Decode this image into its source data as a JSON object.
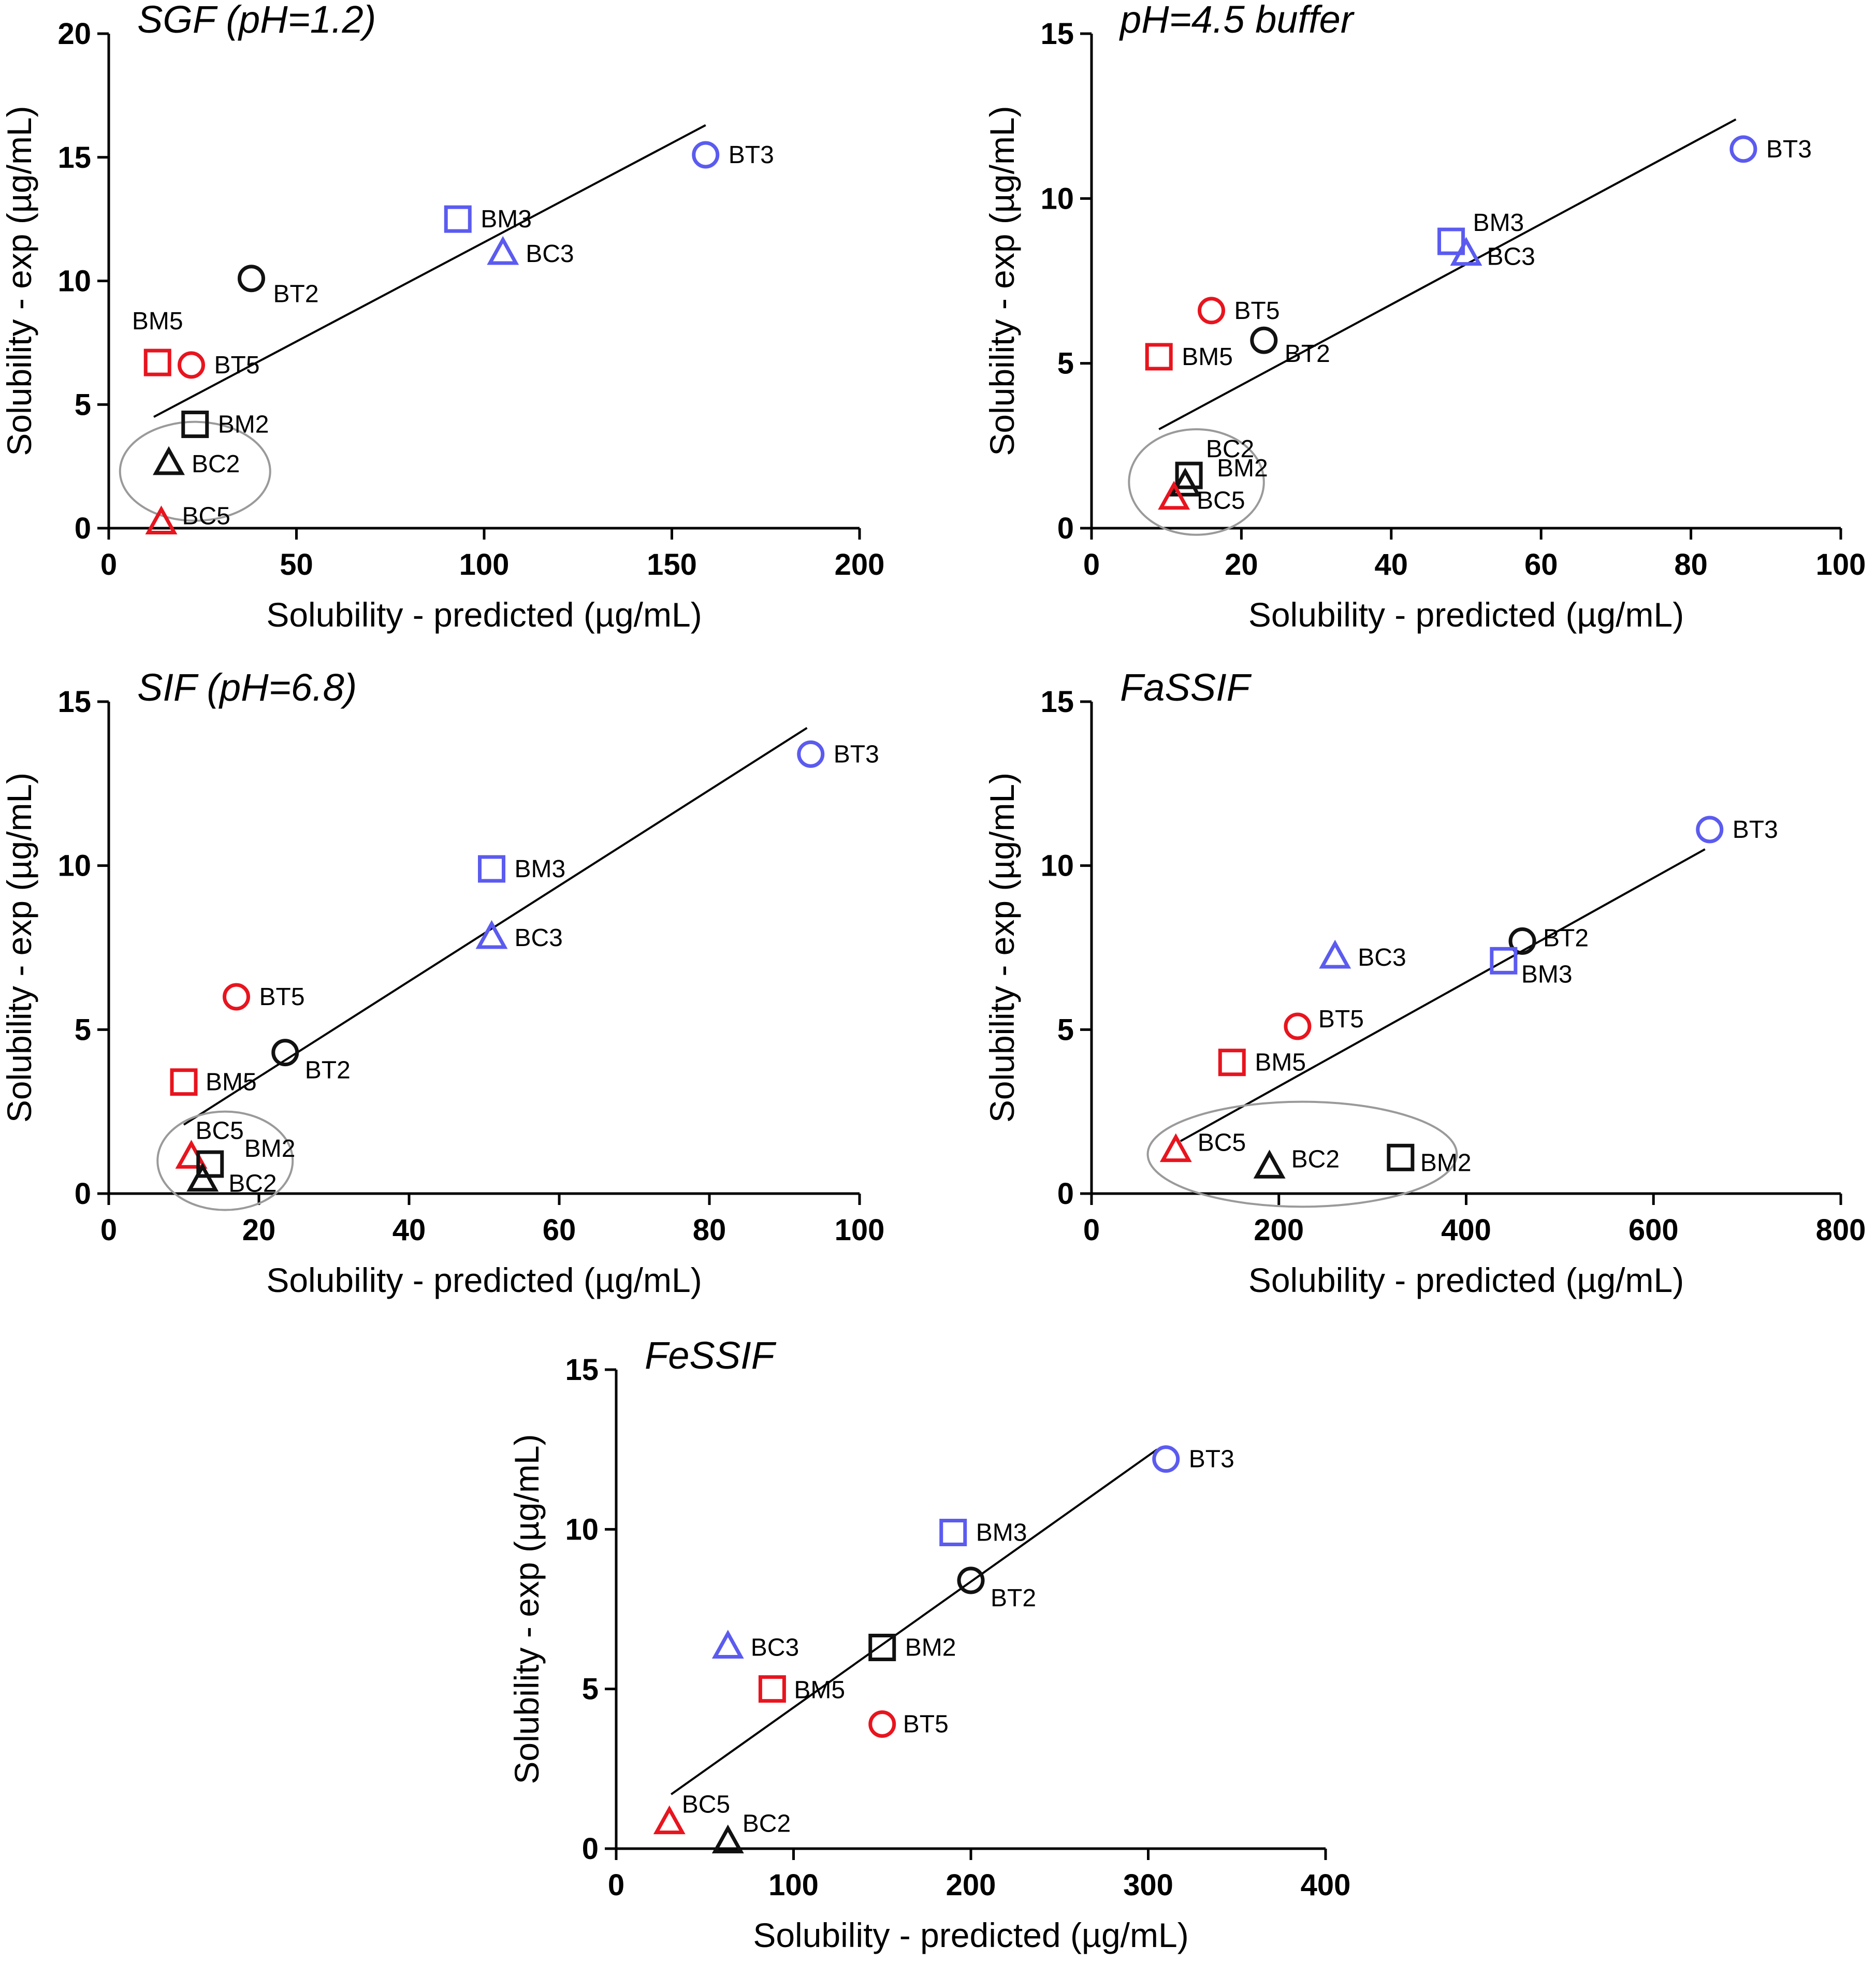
{
  "colors": {
    "blue": "#5B5BF0",
    "red": "#E8141E",
    "black": "#111111",
    "ellipse": "#9A9A9A",
    "fit": "#000000"
  },
  "chart_data": [
    {
      "type": "scatter",
      "title": "SGF (pH=1.2)",
      "xlabel": "Solubility - predicted (µg/mL)",
      "ylabel": "Solubility - exp (µg/mL)",
      "xlim": [
        0,
        200
      ],
      "ylim": [
        0,
        20
      ],
      "xticks": [
        "0",
        "50",
        "100",
        "150",
        "200"
      ],
      "yticks": [
        "0",
        "5",
        "10",
        "15",
        "20"
      ],
      "fit_line": [
        [
          12,
          4.5
        ],
        [
          159,
          16.3
        ]
      ],
      "highlight_ellipse": {
        "cx": 23,
        "cy": 2.3,
        "rx": 20,
        "ry": 2.0
      },
      "points": [
        {
          "label": "BT3",
          "x": 159,
          "y": 15.1,
          "shape": "circle",
          "color": "blue"
        },
        {
          "label": "BM3",
          "x": 93,
          "y": 12.5,
          "shape": "square",
          "color": "blue"
        },
        {
          "label": "BC3",
          "x": 105,
          "y": 11.1,
          "shape": "triangle",
          "color": "blue"
        },
        {
          "label": "BT2",
          "x": 38,
          "y": 10.1,
          "shape": "circle",
          "color": "black"
        },
        {
          "label": "BM5",
          "x": 13,
          "y": 6.7,
          "shape": "square",
          "color": "red"
        },
        {
          "label": "BT5",
          "x": 22,
          "y": 6.6,
          "shape": "circle",
          "color": "red"
        },
        {
          "label": "BM2",
          "x": 23,
          "y": 4.2,
          "shape": "square",
          "color": "black"
        },
        {
          "label": "BC2",
          "x": 16,
          "y": 2.6,
          "shape": "triangle",
          "color": "black"
        },
        {
          "label": "BC5",
          "x": 14,
          "y": 0.2,
          "shape": "triangle",
          "color": "red"
        }
      ]
    },
    {
      "type": "scatter",
      "title": "pH=4.5 buffer",
      "xlabel": "Solubility - predicted (µg/mL)",
      "ylabel": "Solubility - exp (µg/mL)",
      "xlim": [
        0,
        100
      ],
      "ylim": [
        0,
        15
      ],
      "xticks": [
        "0",
        "20",
        "40",
        "60",
        "80",
        "100"
      ],
      "yticks": [
        "0",
        "5",
        "10",
        "15"
      ],
      "fit_line": [
        [
          9,
          3.0
        ],
        [
          86,
          12.4
        ]
      ],
      "highlight_ellipse": {
        "cx": 14,
        "cy": 1.4,
        "rx": 9,
        "ry": 1.6
      },
      "points": [
        {
          "label": "BT3",
          "x": 87,
          "y": 11.5,
          "shape": "circle",
          "color": "blue"
        },
        {
          "label": "BM3",
          "x": 48,
          "y": 8.7,
          "shape": "square",
          "color": "blue"
        },
        {
          "label": "BC3",
          "x": 50,
          "y": 8.3,
          "shape": "triangle",
          "color": "blue"
        },
        {
          "label": "BT5",
          "x": 16,
          "y": 6.6,
          "shape": "circle",
          "color": "red"
        },
        {
          "label": "BT2",
          "x": 23,
          "y": 5.7,
          "shape": "circle",
          "color": "black"
        },
        {
          "label": "BM5",
          "x": 9,
          "y": 5.2,
          "shape": "square",
          "color": "red"
        },
        {
          "label": "BC2",
          "x": 12.5,
          "y": 1.3,
          "shape": "triangle",
          "color": "black"
        },
        {
          "label": "BM2",
          "x": 13,
          "y": 1.6,
          "shape": "square",
          "color": "black"
        },
        {
          "label": "BC5",
          "x": 11,
          "y": 0.9,
          "shape": "triangle",
          "color": "red"
        }
      ]
    },
    {
      "type": "scatter",
      "title": "SIF (pH=6.8)",
      "xlabel": "Solubility - predicted (µg/mL)",
      "ylabel": "Solubility - exp (µg/mL)",
      "xlim": [
        0,
        100
      ],
      "ylim": [
        0,
        15
      ],
      "xticks": [
        "0",
        "20",
        "40",
        "60",
        "80",
        "100"
      ],
      "yticks": [
        "0",
        "5",
        "10",
        "15"
      ],
      "fit_line": [
        [
          10,
          2.1
        ],
        [
          93,
          14.2
        ]
      ],
      "highlight_ellipse": {
        "cx": 15.5,
        "cy": 1.0,
        "rx": 9,
        "ry": 1.5
      },
      "points": [
        {
          "label": "BT3",
          "x": 93.5,
          "y": 13.4,
          "shape": "circle",
          "color": "blue"
        },
        {
          "label": "BM3",
          "x": 51,
          "y": 9.9,
          "shape": "square",
          "color": "blue"
        },
        {
          "label": "BC3",
          "x": 51,
          "y": 7.8,
          "shape": "triangle",
          "color": "blue"
        },
        {
          "label": "BT5",
          "x": 17,
          "y": 6.0,
          "shape": "circle",
          "color": "red"
        },
        {
          "label": "BT2",
          "x": 23.5,
          "y": 4.3,
          "shape": "circle",
          "color": "black"
        },
        {
          "label": "BM5",
          "x": 10,
          "y": 3.4,
          "shape": "square",
          "color": "red"
        },
        {
          "label": "BC5",
          "x": 11,
          "y": 1.1,
          "shape": "triangle",
          "color": "red"
        },
        {
          "label": "BM2",
          "x": 13.5,
          "y": 0.9,
          "shape": "square",
          "color": "black"
        },
        {
          "label": "BC2",
          "x": 12.5,
          "y": 0.4,
          "shape": "triangle",
          "color": "black"
        }
      ]
    },
    {
      "type": "scatter",
      "title": "FaSSIF",
      "xlabel": "Solubility - predicted (µg/mL)",
      "ylabel": "Solubility - exp (µg/mL)",
      "xlim": [
        0,
        800
      ],
      "ylim": [
        0,
        15
      ],
      "xticks": [
        "0",
        "200",
        "400",
        "600",
        "800"
      ],
      "yticks": [
        "0",
        "5",
        "10",
        "15"
      ],
      "fit_line": [
        [
          95,
          1.6
        ],
        [
          655,
          10.5
        ]
      ],
      "highlight_ellipse": {
        "cx": 225,
        "cy": 1.2,
        "rx": 165,
        "ry": 1.6
      },
      "points": [
        {
          "label": "BT3",
          "x": 660,
          "y": 11.1,
          "shape": "circle",
          "color": "blue"
        },
        {
          "label": "BT2",
          "x": 460,
          "y": 7.7,
          "shape": "circle",
          "color": "black"
        },
        {
          "label": "BM3",
          "x": 440,
          "y": 7.1,
          "shape": "square",
          "color": "blue"
        },
        {
          "label": "BC3",
          "x": 260,
          "y": 7.2,
          "shape": "triangle",
          "color": "blue"
        },
        {
          "label": "BT5",
          "x": 220,
          "y": 5.1,
          "shape": "circle",
          "color": "red"
        },
        {
          "label": "BM5",
          "x": 150,
          "y": 4.0,
          "shape": "square",
          "color": "red"
        },
        {
          "label": "BC5",
          "x": 90,
          "y": 1.3,
          "shape": "triangle",
          "color": "red"
        },
        {
          "label": "BC2",
          "x": 190,
          "y": 0.8,
          "shape": "triangle",
          "color": "black"
        },
        {
          "label": "BM2",
          "x": 330,
          "y": 1.1,
          "shape": "square",
          "color": "black"
        }
      ]
    },
    {
      "type": "scatter",
      "title": "FeSSIF",
      "xlabel": "Solubility - predicted (µg/mL)",
      "ylabel": "Solubility - exp (µg/mL)",
      "xlim": [
        0,
        400
      ],
      "ylim": [
        0,
        15
      ],
      "xticks": [
        "0",
        "100",
        "200",
        "300",
        "400"
      ],
      "yticks": [
        "0",
        "5",
        "10",
        "15"
      ],
      "fit_line": [
        [
          31,
          1.7
        ],
        [
          305,
          12.5
        ]
      ],
      "highlight_ellipse": null,
      "points": [
        {
          "label": "BT3",
          "x": 310,
          "y": 12.2,
          "shape": "circle",
          "color": "blue"
        },
        {
          "label": "BM3",
          "x": 190,
          "y": 9.9,
          "shape": "square",
          "color": "blue"
        },
        {
          "label": "BT2",
          "x": 200,
          "y": 8.4,
          "shape": "circle",
          "color": "black"
        },
        {
          "label": "BM2",
          "x": 150,
          "y": 6.3,
          "shape": "square",
          "color": "black"
        },
        {
          "label": "BC3",
          "x": 63,
          "y": 6.3,
          "shape": "triangle",
          "color": "blue"
        },
        {
          "label": "BM5",
          "x": 88,
          "y": 5.0,
          "shape": "square",
          "color": "red"
        },
        {
          "label": "BT5",
          "x": 150,
          "y": 3.9,
          "shape": "circle",
          "color": "red"
        },
        {
          "label": "BC5",
          "x": 30,
          "y": 0.8,
          "shape": "triangle",
          "color": "red"
        },
        {
          "label": "BC2",
          "x": 63,
          "y": 0.2,
          "shape": "triangle",
          "color": "black"
        }
      ]
    }
  ]
}
